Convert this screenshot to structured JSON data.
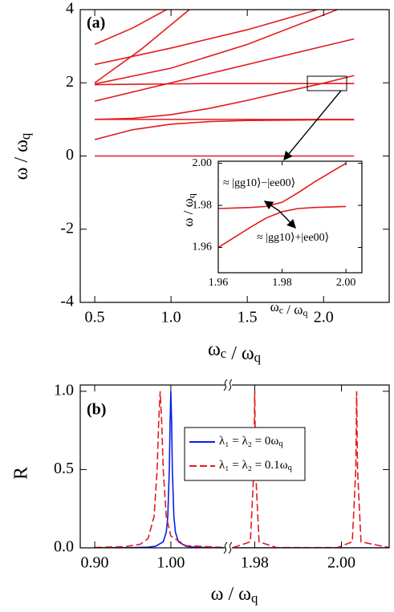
{
  "chart_data": [
    {
      "type": "line",
      "label": "(a)",
      "xlabel": "ωc / ωq",
      "ylabel": "ω / ωq",
      "xlim": [
        0.405,
        2.43
      ],
      "ylim": [
        -4,
        4
      ],
      "xticks": [
        0.5,
        {
          "value": 1.0,
          "label": "1.0"
        },
        1.5,
        {
          "value": 2.0,
          "label": "2.0"
        }
      ],
      "yticks": [
        4,
        2,
        0,
        -2,
        -4
      ],
      "series": [
        {
          "color": "#e31a1c",
          "x": [
            0.5,
            2.2
          ],
          "values": [
            0,
            0
          ]
        },
        {
          "color": "#e31a1c",
          "x": [
            0.5,
            2.2
          ],
          "values": [
            1,
            1
          ]
        },
        {
          "color": "#e31a1c",
          "x": [
            0.5,
            0.75,
            1.0,
            1.25,
            1.5,
            1.75,
            2.0,
            2.2
          ],
          "values": [
            0.45,
            0.72,
            0.87,
            0.94,
            0.97,
            0.98,
            0.99,
            0.99
          ]
        },
        {
          "color": "#e31a1c",
          "x": [
            0.5,
            0.75,
            1.0,
            1.25,
            1.5,
            1.75,
            2.0,
            2.2
          ],
          "values": [
            1.0,
            1.03,
            1.13,
            1.3,
            1.52,
            1.76,
            1.99,
            2.2
          ]
        },
        {
          "color": "#e31a1c",
          "x": [
            0.5,
            2.2
          ],
          "values": [
            1.5,
            3.2
          ]
        },
        {
          "color": "#e31a1c",
          "x": [
            0.5,
            0.75,
            1.0,
            1.25,
            1.5,
            1.75,
            2.0,
            2.2
          ],
          "values": [
            1.95,
            1.96,
            1.97,
            1.98,
            1.98,
            1.98,
            1.98,
            1.98
          ]
        },
        {
          "color": "#e31a1c",
          "x": [
            0.5,
            1.0,
            1.5,
            2.09
          ],
          "values": [
            1.97,
            2.4,
            3.05,
            4.0
          ]
        },
        {
          "color": "#e31a1c",
          "x": [
            0.5,
            1.0,
            1.5,
            1.96
          ],
          "values": [
            2.5,
            2.95,
            3.45,
            4.0
          ]
        },
        {
          "color": "#e31a1c",
          "x": [
            0.5,
            0.75,
            0.97
          ],
          "values": [
            3.05,
            3.5,
            4.0
          ]
        },
        {
          "color": "#e31a1c",
          "x": [
            0.5,
            0.8,
            1.12
          ],
          "values": [
            2.0,
            2.9,
            4.0
          ]
        }
      ]
    },
    {
      "type": "line",
      "xlabel": "ωc / ωq",
      "ylabel": "ω / ωq",
      "xlim": [
        1.96,
        2.005
      ],
      "ylim": [
        1.948,
        2.001
      ],
      "xticks": [
        {
          "value": 1.96,
          "label": "1.96"
        },
        {
          "value": 1.98,
          "label": "1.98"
        },
        {
          "value": 2.0,
          "label": "2.00"
        }
      ],
      "yticks": [
        {
          "value": 2.0,
          "label": "2.00"
        },
        {
          "value": 1.98,
          "label": "1.98"
        },
        {
          "value": 1.96,
          "label": "1.96"
        }
      ],
      "annotations": [
        "≈ |gg10⟩−|ee00⟩",
        "≈ |gg10⟩+|ee00⟩"
      ],
      "series": [
        {
          "color": "#e31a1c",
          "x": [
            1.96,
            1.97,
            1.975,
            1.98,
            1.985,
            1.99,
            2.0
          ],
          "values": [
            1.9785,
            1.979,
            1.9795,
            1.9815,
            1.986,
            1.991,
            2.0
          ]
        },
        {
          "color": "#e31a1c",
          "x": [
            1.96,
            1.97,
            1.975,
            1.98,
            1.985,
            1.99,
            2.0
          ],
          "values": [
            1.96,
            1.9695,
            1.974,
            1.977,
            1.9785,
            1.979,
            1.9795
          ]
        }
      ]
    },
    {
      "type": "line",
      "label": "(b)",
      "xlabel": "ω / ωq",
      "ylabel": "R",
      "xlim": [
        [
          0.881,
          1.076
        ],
        [
          1.974,
          2.011
        ]
      ],
      "ylim": [
        0,
        1.04
      ],
      "xticks": [
        {
          "value": 0.9,
          "label": "0.90"
        },
        {
          "value": 1.0,
          "label": "1.00"
        },
        {
          "value": 1.98,
          "label": "1.98"
        },
        {
          "value": 2.0,
          "label": "2.00"
        }
      ],
      "yticks": [
        {
          "value": 0.0,
          "label": "0.0"
        },
        {
          "value": 0.5,
          "label": "0.5"
        },
        {
          "value": 1.0,
          "label": "1.0"
        }
      ],
      "legend": "upper center",
      "series": [
        {
          "name": "λ₁ = λ₂ = 0ωq",
          "color": "#0a1ee6",
          "dash": false,
          "x": [
            0.9,
            0.95,
            0.97,
            0.98,
            0.99,
            0.994,
            0.996,
            0.998,
            0.999,
            1.0,
            1.001,
            1.002,
            1.004,
            1.006,
            1.01,
            1.02,
            1.03,
            1.05,
            1.07,
            1.975,
            2.011
          ],
          "values": [
            0.0004,
            0.0016,
            0.0044,
            0.0099,
            0.0385,
            0.1,
            0.2,
            0.5,
            0.8,
            1.0,
            0.8,
            0.5,
            0.2,
            0.1,
            0.0385,
            0.0099,
            0.0044,
            0.0016,
            0.0004,
            0.0,
            0.0
          ]
        },
        {
          "name": "λ₁ = λ₂ = 0.1ωq",
          "color": "#e31a1c",
          "dash": true,
          "x": [
            0.9,
            0.94,
            0.96,
            0.97,
            0.978,
            0.982,
            0.984,
            0.986,
            0.988,
            0.99,
            0.994,
            1.0,
            1.02,
            1.07,
            1.975,
            1.979,
            1.9798,
            1.98,
            1.9802,
            1.981,
            1.985,
            1.999,
            2.0025,
            2.0033,
            2.0035,
            2.0037,
            2.0045,
            2.011
          ],
          "values": [
            0.0022,
            0.0075,
            0.0231,
            0.0588,
            0.2,
            0.5,
            0.8,
            1.0,
            0.8,
            0.5,
            0.2,
            0.0755,
            0.0137,
            0.0023,
            0.0016,
            0.0385,
            0.5,
            1.0,
            0.5,
            0.0385,
            0.0016,
            0.0016,
            0.0385,
            0.5,
            1.0,
            0.5,
            0.0385,
            0.0016
          ]
        }
      ]
    }
  ]
}
